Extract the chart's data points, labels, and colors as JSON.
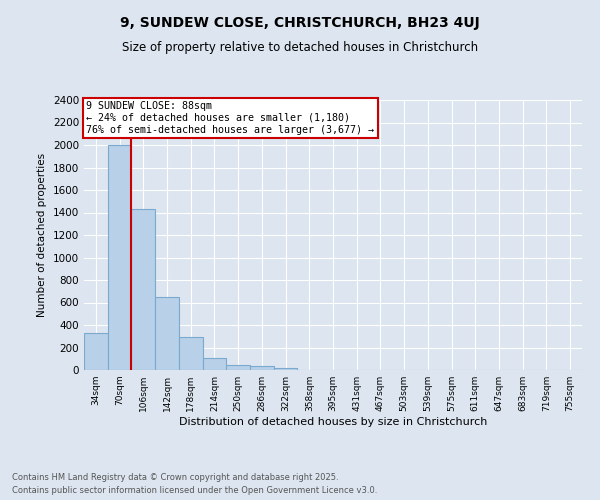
{
  "title": "9, SUNDEW CLOSE, CHRISTCHURCH, BH23 4UJ",
  "subtitle": "Size of property relative to detached houses in Christchurch",
  "xlabel": "Distribution of detached houses by size in Christchurch",
  "ylabel": "Number of detached properties",
  "bins": [
    "34sqm",
    "70sqm",
    "106sqm",
    "142sqm",
    "178sqm",
    "214sqm",
    "250sqm",
    "286sqm",
    "322sqm",
    "358sqm",
    "395sqm",
    "431sqm",
    "467sqm",
    "503sqm",
    "539sqm",
    "575sqm",
    "611sqm",
    "647sqm",
    "683sqm",
    "719sqm",
    "755sqm"
  ],
  "values": [
    325,
    2000,
    1430,
    650,
    290,
    105,
    45,
    35,
    20,
    0,
    0,
    0,
    0,
    0,
    0,
    0,
    0,
    0,
    0,
    0,
    0
  ],
  "bar_color": "#b8d0e8",
  "bar_edge_color": "#7aaad0",
  "property_line_color": "#cc0000",
  "annotation_text_line1": "9 SUNDEW CLOSE: 88sqm",
  "annotation_text_line2": "← 24% of detached houses are smaller (1,180)",
  "annotation_text_line3": "76% of semi-detached houses are larger (3,677) →",
  "annotation_box_color": "#ffffff",
  "annotation_box_edge_color": "#cc0000",
  "ylim": [
    0,
    2400
  ],
  "yticks": [
    0,
    200,
    400,
    600,
    800,
    1000,
    1200,
    1400,
    1600,
    1800,
    2000,
    2200,
    2400
  ],
  "background_color": "#dde6f0",
  "footer_line1": "Contains HM Land Registry data © Crown copyright and database right 2025.",
  "footer_line2": "Contains public sector information licensed under the Open Government Licence v3.0."
}
